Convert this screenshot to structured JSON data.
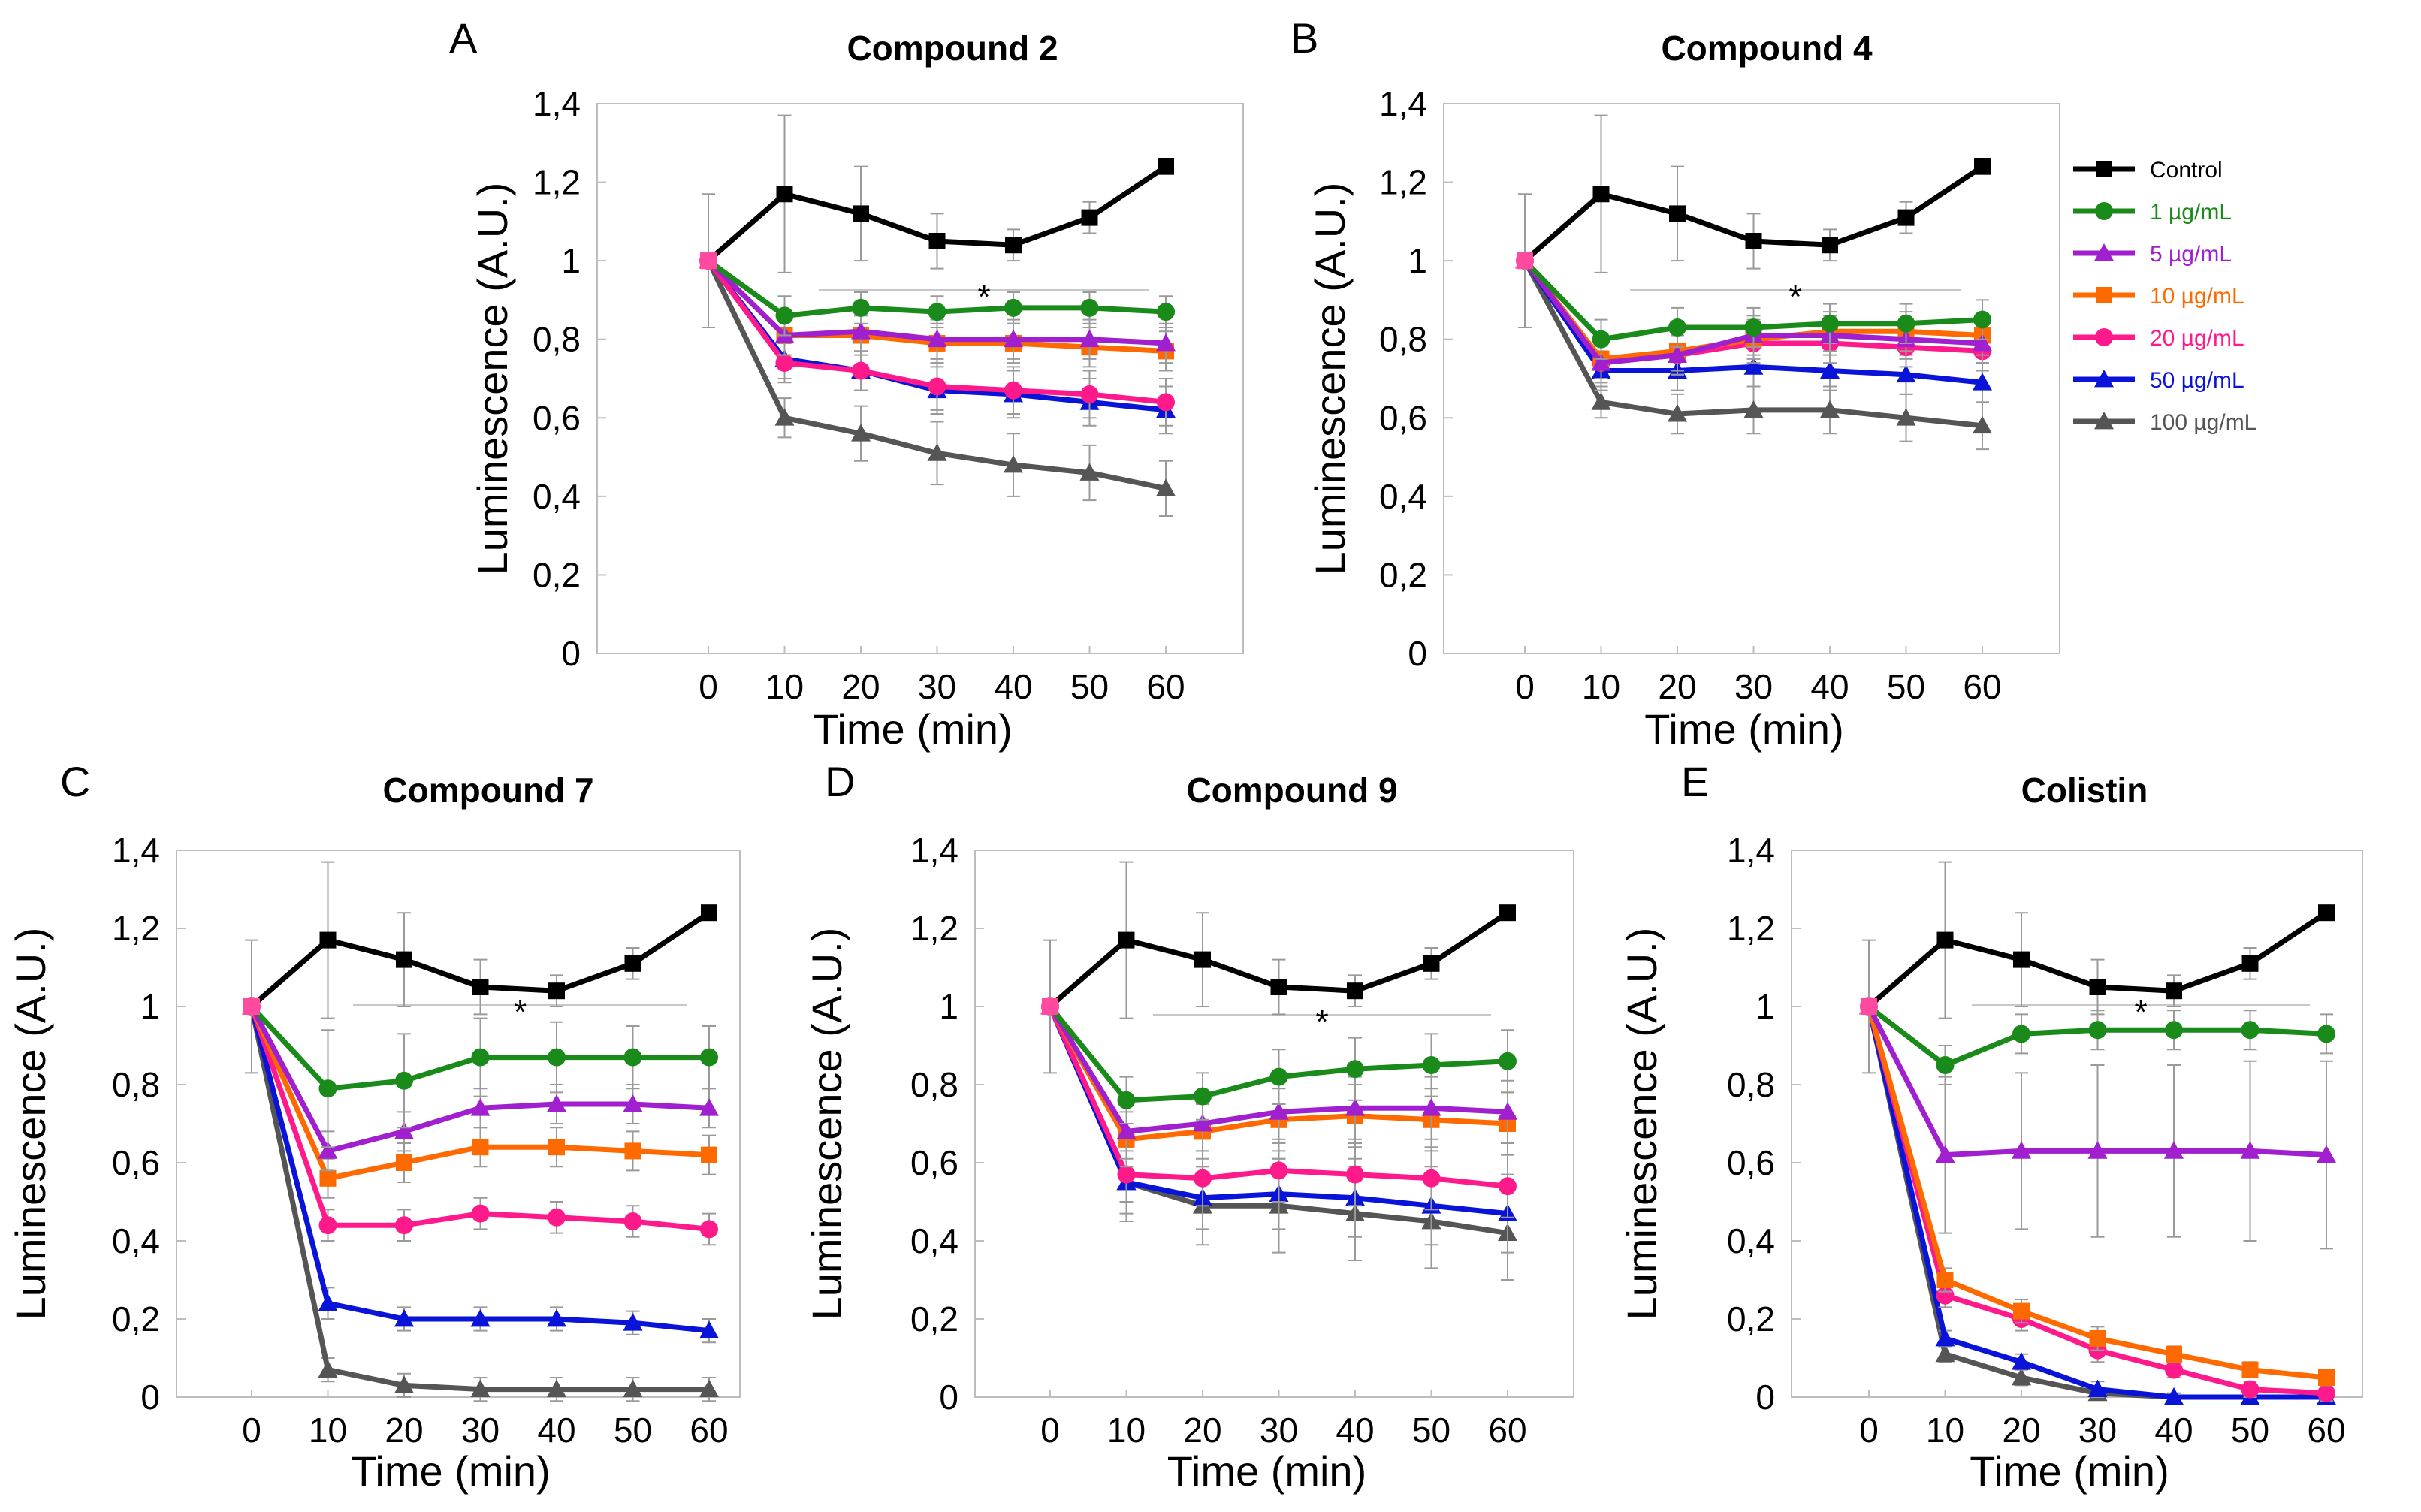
{
  "colors": {
    "control": "#000000",
    "s1": "#1a8a1a",
    "s5": "#a020d0",
    "s10": "#ff6a00",
    "s20": "#ff1a8c",
    "s50": "#0a14d8",
    "s100": "#555555"
  },
  "legend": [
    {
      "key": "control",
      "label": "Control",
      "marker": "square",
      "color": "#000000",
      "text_color": "#000000"
    },
    {
      "key": "s1",
      "label": "1 µg/mL",
      "marker": "circle",
      "color": "#1a8a1a",
      "text_color": "#1a8a1a"
    },
    {
      "key": "s5",
      "label": " 5 µg/mL",
      "marker": "triangle",
      "color": "#a020d0",
      "text_color": "#a020d0"
    },
    {
      "key": "s10",
      "label": "10 µg/mL",
      "marker": "square",
      "color": "#ff6a00",
      "text_color": "#ff6a00"
    },
    {
      "key": "s20",
      "label": "20 µg/mL",
      "marker": "circle",
      "color": "#ff1a8c",
      "text_color": "#ff1a8c"
    },
    {
      "key": "s50",
      "label": "50 µg/mL",
      "marker": "triangle",
      "color": "#0a14d8",
      "text_color": "#0a14d8"
    },
    {
      "key": "s100",
      "label": "100 µg/mL",
      "marker": "triangle",
      "color": "#555555",
      "text_color": "#555555"
    }
  ],
  "chart_data": [
    {
      "panel": "A",
      "type": "line",
      "title": "Compound 2",
      "xlabel": "Time (min)",
      "ylabel": "Luminescence (A.U.)",
      "x": [
        0,
        10,
        20,
        30,
        40,
        50,
        60
      ],
      "x_tick_labels": [
        "0",
        "10",
        "20",
        "30",
        "40",
        "50",
        "60"
      ],
      "ylim": [
        0,
        1.4
      ],
      "y_tick_labels": [
        "0",
        "0,2",
        "0,4",
        "0,6",
        "0,8",
        "1",
        "1,2",
        "1,4"
      ],
      "annotation": "*",
      "series": [
        {
          "key": "control",
          "name": "Control",
          "values": [
            1.0,
            1.17,
            1.12,
            1.05,
            1.04,
            1.11,
            1.24
          ],
          "err": [
            0.17,
            0.2,
            0.12,
            0.07,
            0.04,
            0.04,
            0.0
          ]
        },
        {
          "key": "s1",
          "name": "1 µg/mL",
          "values": [
            1.0,
            0.86,
            0.88,
            0.87,
            0.88,
            0.88,
            0.87
          ],
          "err": [
            0.0,
            0.05,
            0.04,
            0.04,
            0.04,
            0.04,
            0.04
          ]
        },
        {
          "key": "s5",
          "name": "5 µg/mL",
          "values": [
            1.0,
            0.81,
            0.82,
            0.8,
            0.8,
            0.8,
            0.79
          ],
          "err": [
            0.0,
            0.05,
            0.05,
            0.05,
            0.05,
            0.05,
            0.05
          ]
        },
        {
          "key": "s10",
          "name": "10 µg/mL",
          "values": [
            1.0,
            0.81,
            0.81,
            0.79,
            0.79,
            0.78,
            0.77
          ],
          "err": [
            0.0,
            0.05,
            0.05,
            0.05,
            0.05,
            0.05,
            0.05
          ]
        },
        {
          "key": "s20",
          "name": "20 µg/mL",
          "values": [
            1.0,
            0.74,
            0.72,
            0.68,
            0.67,
            0.66,
            0.64
          ],
          "err": [
            0.0,
            0.05,
            0.05,
            0.06,
            0.06,
            0.06,
            0.06
          ]
        },
        {
          "key": "s50",
          "name": "50 µg/mL",
          "values": [
            1.0,
            0.75,
            0.72,
            0.67,
            0.66,
            0.64,
            0.62
          ],
          "err": [
            0.0,
            0.05,
            0.05,
            0.06,
            0.06,
            0.06,
            0.06
          ]
        },
        {
          "key": "s100",
          "name": "100 µg/mL",
          "values": [
            1.0,
            0.6,
            0.56,
            0.51,
            0.48,
            0.46,
            0.42
          ],
          "err": [
            0.0,
            0.05,
            0.07,
            0.08,
            0.08,
            0.07,
            0.07
          ]
        }
      ]
    },
    {
      "panel": "B",
      "type": "line",
      "title": "Compound 4",
      "xlabel": "Time (min)",
      "ylabel": "Luminescence (A.U.)",
      "x": [
        0,
        10,
        20,
        30,
        40,
        50,
        60
      ],
      "x_tick_labels": [
        "0",
        "10",
        "20",
        "30",
        "40",
        "50",
        "60"
      ],
      "ylim": [
        0,
        1.4
      ],
      "y_tick_labels": [
        "0",
        "0,2",
        "0,4",
        "0,6",
        "0,8",
        "1",
        "1,2",
        "1,4"
      ],
      "annotation": "*",
      "series": [
        {
          "key": "control",
          "name": "Control",
          "values": [
            1.0,
            1.17,
            1.12,
            1.05,
            1.04,
            1.11,
            1.24
          ],
          "err": [
            0.17,
            0.2,
            0.12,
            0.07,
            0.04,
            0.04,
            0.0
          ]
        },
        {
          "key": "s1",
          "name": "1 µg/mL",
          "values": [
            1.0,
            0.8,
            0.83,
            0.83,
            0.84,
            0.84,
            0.85
          ],
          "err": [
            0.0,
            0.05,
            0.05,
            0.05,
            0.05,
            0.05,
            0.05
          ]
        },
        {
          "key": "s5",
          "name": "5 µg/mL",
          "values": [
            1.0,
            0.74,
            0.76,
            0.81,
            0.81,
            0.8,
            0.79
          ],
          "err": [
            0.0,
            0.05,
            0.05,
            0.05,
            0.05,
            0.05,
            0.05
          ]
        },
        {
          "key": "s10",
          "name": "10 µg/mL",
          "values": [
            1.0,
            0.75,
            0.77,
            0.8,
            0.82,
            0.82,
            0.81
          ],
          "err": [
            0.0,
            0.05,
            0.05,
            0.05,
            0.05,
            0.05,
            0.05
          ]
        },
        {
          "key": "s20",
          "name": "20 µg/mL",
          "values": [
            1.0,
            0.74,
            0.76,
            0.79,
            0.79,
            0.78,
            0.77
          ],
          "err": [
            0.0,
            0.05,
            0.05,
            0.05,
            0.05,
            0.05,
            0.05
          ]
        },
        {
          "key": "s50",
          "name": "50 µg/mL",
          "values": [
            1.0,
            0.72,
            0.72,
            0.73,
            0.72,
            0.71,
            0.69
          ],
          "err": [
            0.0,
            0.05,
            0.05,
            0.05,
            0.05,
            0.05,
            0.05
          ]
        },
        {
          "key": "s100",
          "name": "100 µg/mL",
          "values": [
            1.0,
            0.64,
            0.61,
            0.62,
            0.62,
            0.6,
            0.58
          ],
          "err": [
            0.0,
            0.04,
            0.05,
            0.06,
            0.06,
            0.06,
            0.06
          ]
        }
      ]
    },
    {
      "panel": "C",
      "type": "line",
      "title": "Compound 7",
      "xlabel": "Time (min)",
      "ylabel": "Luminescence (A.U.)",
      "x": [
        0,
        10,
        20,
        30,
        40,
        50,
        60
      ],
      "x_tick_labels": [
        "0",
        "10",
        "20",
        "30",
        "40",
        "50",
        "60"
      ],
      "ylim": [
        0,
        1.4
      ],
      "y_tick_labels": [
        "0",
        "0,2",
        "0,4",
        "0,6",
        "0,8",
        "1",
        "1,2",
        "1,4"
      ],
      "annotation": "*",
      "series": [
        {
          "key": "control",
          "name": "Control",
          "values": [
            1.0,
            1.17,
            1.12,
            1.05,
            1.04,
            1.11,
            1.24
          ],
          "err": [
            0.17,
            0.2,
            0.12,
            0.07,
            0.04,
            0.04,
            0.0
          ]
        },
        {
          "key": "s1",
          "name": "1 µg/mL",
          "values": [
            1.0,
            0.79,
            0.81,
            0.87,
            0.87,
            0.87,
            0.87
          ],
          "err": [
            0.0,
            0.15,
            0.12,
            0.1,
            0.09,
            0.08,
            0.08
          ]
        },
        {
          "key": "s5",
          "name": "5 µg/mL",
          "values": [
            1.0,
            0.63,
            0.68,
            0.74,
            0.75,
            0.75,
            0.74
          ],
          "err": [
            0.0,
            0.05,
            0.05,
            0.05,
            0.05,
            0.05,
            0.05
          ]
        },
        {
          "key": "s10",
          "name": "10 µg/mL",
          "values": [
            1.0,
            0.56,
            0.6,
            0.64,
            0.64,
            0.63,
            0.62
          ],
          "err": [
            0.0,
            0.05,
            0.05,
            0.05,
            0.05,
            0.05,
            0.05
          ]
        },
        {
          "key": "s20",
          "name": "20 µg/mL",
          "values": [
            1.0,
            0.44,
            0.44,
            0.47,
            0.46,
            0.45,
            0.43
          ],
          "err": [
            0.0,
            0.04,
            0.04,
            0.04,
            0.04,
            0.04,
            0.04
          ]
        },
        {
          "key": "s50",
          "name": "50 µg/mL",
          "values": [
            1.0,
            0.24,
            0.2,
            0.2,
            0.2,
            0.19,
            0.17
          ],
          "err": [
            0.0,
            0.04,
            0.03,
            0.03,
            0.03,
            0.03,
            0.03
          ]
        },
        {
          "key": "s100",
          "name": "100 µg/mL",
          "values": [
            1.0,
            0.07,
            0.03,
            0.02,
            0.02,
            0.02,
            0.02
          ],
          "err": [
            0.0,
            0.03,
            0.03,
            0.03,
            0.03,
            0.03,
            0.03
          ]
        }
      ]
    },
    {
      "panel": "D",
      "type": "line",
      "title": "Compound 9",
      "xlabel": "Time (min)",
      "ylabel": "Luminescence (A.U.)",
      "x": [
        0,
        10,
        20,
        30,
        40,
        50,
        60
      ],
      "x_tick_labels": [
        "0",
        "10",
        "20",
        "30",
        "40",
        "50",
        "60"
      ],
      "ylim": [
        0,
        1.4
      ],
      "y_tick_labels": [
        "0",
        "0,2",
        "0,4",
        "0,6",
        "0,8",
        "1",
        "1,2",
        "1,4"
      ],
      "annotation": "*",
      "series": [
        {
          "key": "control",
          "name": "Control",
          "values": [
            1.0,
            1.17,
            1.12,
            1.05,
            1.04,
            1.11,
            1.24
          ],
          "err": [
            0.17,
            0.2,
            0.12,
            0.07,
            0.04,
            0.04,
            0.0
          ]
        },
        {
          "key": "s1",
          "name": "1 µg/mL",
          "values": [
            1.0,
            0.76,
            0.77,
            0.82,
            0.84,
            0.85,
            0.86
          ],
          "err": [
            0.0,
            0.06,
            0.06,
            0.07,
            0.08,
            0.08,
            0.08
          ]
        },
        {
          "key": "s5",
          "name": "5 µg/mL",
          "values": [
            1.0,
            0.68,
            0.7,
            0.73,
            0.74,
            0.74,
            0.73
          ],
          "err": [
            0.0,
            0.07,
            0.07,
            0.08,
            0.08,
            0.08,
            0.08
          ]
        },
        {
          "key": "s10",
          "name": "10 µg/mL",
          "values": [
            1.0,
            0.66,
            0.68,
            0.71,
            0.72,
            0.71,
            0.7
          ],
          "err": [
            0.0,
            0.07,
            0.07,
            0.08,
            0.08,
            0.08,
            0.08
          ]
        },
        {
          "key": "s20",
          "name": "20 µg/mL",
          "values": [
            1.0,
            0.57,
            0.56,
            0.58,
            0.57,
            0.56,
            0.54
          ],
          "err": [
            0.0,
            0.07,
            0.07,
            0.08,
            0.08,
            0.08,
            0.08
          ]
        },
        {
          "key": "s50",
          "name": "50 µg/mL",
          "values": [
            1.0,
            0.55,
            0.51,
            0.52,
            0.51,
            0.49,
            0.47
          ],
          "err": [
            0.0,
            0.08,
            0.08,
            0.09,
            0.1,
            0.1,
            0.1
          ]
        },
        {
          "key": "s100",
          "name": "100 µg/mL",
          "values": [
            1.0,
            0.55,
            0.49,
            0.49,
            0.47,
            0.45,
            0.42
          ],
          "err": [
            0.0,
            0.1,
            0.1,
            0.12,
            0.12,
            0.12,
            0.12
          ]
        }
      ]
    },
    {
      "panel": "E",
      "type": "line",
      "title": "Colistin",
      "xlabel": "Time (min)",
      "ylabel": "Luminescence (A.U.)",
      "x": [
        0,
        10,
        20,
        30,
        40,
        50,
        60
      ],
      "x_tick_labels": [
        "0",
        "10",
        "20",
        "30",
        "40",
        "50",
        "60"
      ],
      "ylim": [
        0,
        1.4
      ],
      "y_tick_labels": [
        "0",
        "0,2",
        "0,4",
        "0,6",
        "0,8",
        "1",
        "1,2",
        "1,4"
      ],
      "annotation": "*",
      "series": [
        {
          "key": "control",
          "name": "Control",
          "values": [
            1.0,
            1.17,
            1.12,
            1.05,
            1.04,
            1.11,
            1.24
          ],
          "err": [
            0.17,
            0.2,
            0.12,
            0.07,
            0.04,
            0.04,
            0.0
          ]
        },
        {
          "key": "s1",
          "name": "1 µg/mL",
          "values": [
            1.0,
            0.85,
            0.93,
            0.94,
            0.94,
            0.94,
            0.93
          ],
          "err": [
            0.0,
            0.05,
            0.05,
            0.05,
            0.05,
            0.05,
            0.05
          ]
        },
        {
          "key": "s5",
          "name": "5 µg/mL",
          "values": [
            1.0,
            0.62,
            0.63,
            0.63,
            0.63,
            0.63,
            0.62
          ],
          "err": [
            0.0,
            0.2,
            0.2,
            0.22,
            0.22,
            0.23,
            0.24
          ]
        },
        {
          "key": "s10",
          "name": "10 µg/mL",
          "values": [
            1.0,
            0.3,
            0.22,
            0.15,
            0.11,
            0.07,
            0.05
          ],
          "err": [
            0.0,
            0.03,
            0.03,
            0.03,
            0.02,
            0.02,
            0.02
          ]
        },
        {
          "key": "s20",
          "name": "20 µg/mL",
          "values": [
            1.0,
            0.26,
            0.2,
            0.12,
            0.07,
            0.02,
            0.01
          ],
          "err": [
            0.0,
            0.03,
            0.03,
            0.03,
            0.02,
            0.02,
            0.02
          ]
        },
        {
          "key": "s50",
          "name": "50 µg/mL",
          "values": [
            1.0,
            0.15,
            0.09,
            0.02,
            0.0,
            0.0,
            0.0
          ],
          "err": [
            0.0,
            0.02,
            0.02,
            0.02,
            0.01,
            0.01,
            0.01
          ]
        },
        {
          "key": "s100",
          "name": "100 µg/mL",
          "values": [
            1.0,
            0.11,
            0.05,
            0.01,
            0.0,
            0.0,
            0.0
          ],
          "err": [
            0.0,
            0.02,
            0.02,
            0.01,
            0.01,
            0.01,
            0.01
          ]
        }
      ]
    }
  ]
}
